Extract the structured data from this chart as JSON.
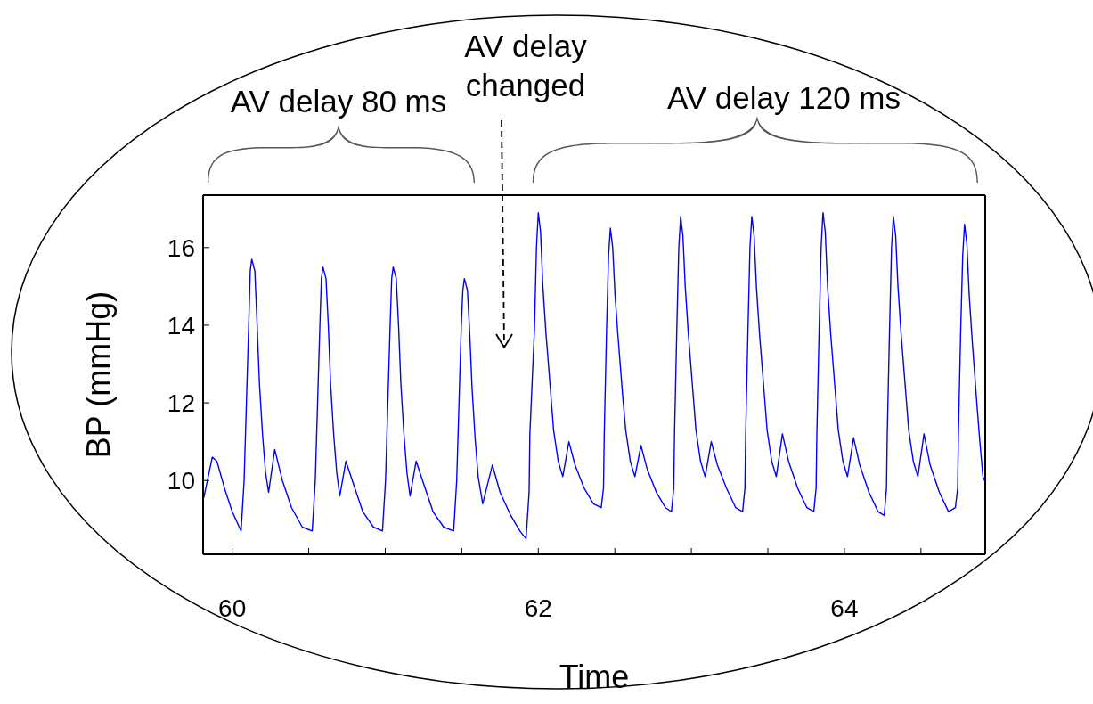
{
  "chart_data": {
    "type": "line",
    "xlabel": "Time",
    "ylabel": "BP (mmHg)",
    "annotations": [
      "AV delay 80 ms",
      "AV delay changed",
      "AV delay 120 ms"
    ],
    "xlim": [
      59.81,
      64.92
    ],
    "ylim": [
      8.1,
      17.35
    ],
    "xticks": [
      60,
      {
        "value": 60.5,
        "label": null
      },
      {
        "value": 61,
        "label": null
      },
      {
        "value": 61.5,
        "label": null
      },
      62,
      {
        "value": 62.5,
        "label": null
      },
      {
        "value": 63,
        "label": null
      },
      {
        "value": 63.5,
        "label": null
      },
      64,
      {
        "value": 64.5,
        "label": null
      }
    ],
    "yticks": [
      10,
      12,
      14,
      16
    ],
    "marker": "none",
    "line_style": "solid",
    "series": [
      {
        "color": "#0000ff",
        "x": [
          59.814,
          59.87,
          59.9,
          59.95,
          60.0,
          60.058,
          60.078,
          60.093,
          60.108,
          60.118,
          60.128,
          60.148,
          60.163,
          60.178,
          60.198,
          60.218,
          60.238,
          60.278,
          60.328,
          60.388,
          60.458,
          60.523,
          60.543,
          60.558,
          60.573,
          60.583,
          60.593,
          60.613,
          60.628,
          60.643,
          60.663,
          60.683,
          60.703,
          60.743,
          60.793,
          60.853,
          60.923,
          60.982,
          61.002,
          61.017,
          61.032,
          61.042,
          61.052,
          61.072,
          61.087,
          61.102,
          61.122,
          61.142,
          61.162,
          61.202,
          61.252,
          61.312,
          61.382,
          61.447,
          61.467,
          61.482,
          61.497,
          61.507,
          61.517,
          61.537,
          61.552,
          61.567,
          61.587,
          61.607,
          61.637,
          61.7,
          61.75,
          61.82,
          61.88,
          61.92,
          61.94,
          61.945,
          61.975,
          61.988,
          62.0,
          62.015,
          62.03,
          62.05,
          62.08,
          62.1,
          62.13,
          62.16,
          62.2,
          62.24,
          62.3,
          62.36,
          62.411,
          62.426,
          62.431,
          62.446,
          62.459,
          62.471,
          62.486,
          62.501,
          62.521,
          62.551,
          62.571,
          62.601,
          62.631,
          62.671,
          62.711,
          62.771,
          62.831,
          62.87,
          62.885,
          62.89,
          62.905,
          62.918,
          62.93,
          62.945,
          62.96,
          62.98,
          63.01,
          63.03,
          63.06,
          63.09,
          63.13,
          63.17,
          63.23,
          63.29,
          63.335,
          63.35,
          63.355,
          63.37,
          63.383,
          63.395,
          63.41,
          63.425,
          63.445,
          63.475,
          63.495,
          63.525,
          63.555,
          63.595,
          63.635,
          63.695,
          63.755,
          63.8,
          63.815,
          63.82,
          63.835,
          63.848,
          63.86,
          63.875,
          63.89,
          63.91,
          63.94,
          63.96,
          63.99,
          64.02,
          64.06,
          64.1,
          64.16,
          64.22,
          64.26,
          64.275,
          64.28,
          64.295,
          64.308,
          64.32,
          64.335,
          64.35,
          64.37,
          64.4,
          64.42,
          64.45,
          64.48,
          64.52,
          64.56,
          64.62,
          64.68,
          64.725,
          64.74,
          64.745,
          64.76,
          64.773,
          64.785,
          64.8,
          64.815,
          64.835,
          64.865,
          64.885,
          64.905,
          64.915
        ],
        "values": [
          9.55,
          10.6,
          10.5,
          9.8,
          9.2,
          8.7,
          10.0,
          12.0,
          14.0,
          15.4,
          15.7,
          15.4,
          14.0,
          12.5,
          11.2,
          10.2,
          9.7,
          10.8,
          10.0,
          9.3,
          8.8,
          8.7,
          10.0,
          12.0,
          14.0,
          15.2,
          15.5,
          15.2,
          14.0,
          12.5,
          11.2,
          10.2,
          9.6,
          10.5,
          9.9,
          9.2,
          8.8,
          8.7,
          10.0,
          12.0,
          14.0,
          15.2,
          15.5,
          15.2,
          14.0,
          12.5,
          11.2,
          10.2,
          9.6,
          10.5,
          9.9,
          9.2,
          8.8,
          8.7,
          10.0,
          12.0,
          14.0,
          14.9,
          15.2,
          14.9,
          13.8,
          12.4,
          11.1,
          10.1,
          9.4,
          10.4,
          9.7,
          9.1,
          8.7,
          8.5,
          9.7,
          11.2,
          13.9,
          16.0,
          16.9,
          16.4,
          15.0,
          13.8,
          12.3,
          11.3,
          10.5,
          10.1,
          11.0,
          10.4,
          9.8,
          9.4,
          9.3,
          9.8,
          11.2,
          13.9,
          15.8,
          16.5,
          16.0,
          14.8,
          13.7,
          12.2,
          11.3,
          10.5,
          10.1,
          10.9,
          10.3,
          9.7,
          9.3,
          9.2,
          9.8,
          11.2,
          13.9,
          16.0,
          16.8,
          16.3,
          15.0,
          13.8,
          12.3,
          11.3,
          10.5,
          10.1,
          11.0,
          10.4,
          9.8,
          9.3,
          9.2,
          9.8,
          11.2,
          13.9,
          16.0,
          16.8,
          16.3,
          15.0,
          13.8,
          12.3,
          11.3,
          10.5,
          10.1,
          11.2,
          10.5,
          9.8,
          9.3,
          9.2,
          9.8,
          11.2,
          13.9,
          16.0,
          16.9,
          16.4,
          15.0,
          13.8,
          12.3,
          11.3,
          10.5,
          10.1,
          11.1,
          10.4,
          9.7,
          9.2,
          9.1,
          9.8,
          11.2,
          13.9,
          16.0,
          16.8,
          16.3,
          15.0,
          13.8,
          12.3,
          11.3,
          10.5,
          10.1,
          11.2,
          10.4,
          9.7,
          9.2,
          9.3,
          9.8,
          11.2,
          13.9,
          15.8,
          16.6,
          16.1,
          14.8,
          13.6,
          12.0,
          11.0,
          10.1,
          10.0
        ]
      }
    ]
  }
}
